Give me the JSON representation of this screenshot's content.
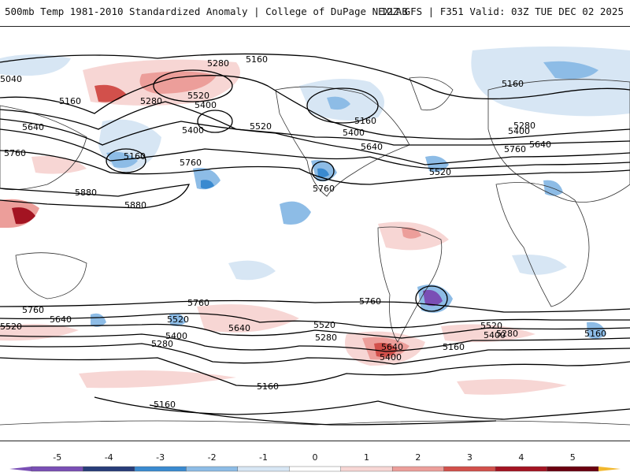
{
  "header": {
    "left_title": "500mb Temp 1981-2010 Standardized Anomaly | College of DuPage NEXLAB",
    "right_title": "12Z GFS | F351 Valid: 03Z TUE DEC 02 2025"
  },
  "colors": {
    "neg5": "#7a4fb5",
    "neg4": "#283d7a",
    "neg3": "#3a8ad0",
    "neg2": "#8dbce6",
    "neg1": "#d7e6f4",
    "zero": "#ffffff",
    "pos1": "#f7d6d4",
    "pos2": "#ec9e9a",
    "pos3": "#d2504b",
    "pos4": "#a31422",
    "pos5": "#6b0010",
    "over": "#f2b82e"
  },
  "colorbar": {
    "ticks": [
      "-5",
      "-4",
      "-3",
      "-2",
      "-1",
      "0",
      "1",
      "2",
      "3",
      "4",
      "5"
    ],
    "min": -5.5,
    "max": 5.5
  },
  "contour_labels": [
    "5160",
    "5280",
    "5040",
    "5520",
    "5400",
    "5280",
    "5160",
    "5520",
    "5640",
    "5400",
    "5760",
    "5160",
    "5880",
    "5880",
    "5760",
    "5160",
    "5400",
    "5640",
    "5520",
    "5760",
    "5160",
    "5280",
    "5400",
    "5640",
    "5760",
    "5760",
    "5640",
    "5520",
    "5520",
    "5400",
    "5280",
    "5760",
    "5640",
    "5520",
    "5400",
    "5280",
    "5160",
    "5160",
    "5760",
    "5640",
    "5520",
    "5400",
    "5280",
    "5160",
    "5160"
  ]
}
